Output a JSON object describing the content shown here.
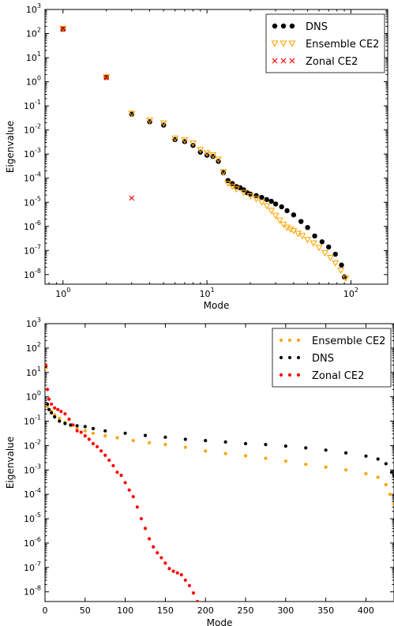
{
  "chart_data": [
    {
      "type": "scatter",
      "xlabel": "Mode",
      "ylabel": "Eigenvalue",
      "xscale": "log",
      "yscale": "log",
      "xlim": [
        0.75,
        180
      ],
      "ylim": [
        4e-09,
        1000
      ],
      "x_ticks": [
        1,
        10,
        100
      ],
      "x_tick_labels": [
        {
          "base": "10",
          "exp": "0"
        },
        {
          "base": "10",
          "exp": "1"
        },
        {
          "base": "10",
          "exp": "2"
        }
      ],
      "y_ticks": [
        1e-08,
        1e-07,
        1e-06,
        1e-05,
        0.0001,
        0.001,
        0.01,
        0.1,
        1,
        10,
        100,
        1000
      ],
      "y_tick_labels": [
        {
          "base": "10",
          "exp": "-8"
        },
        {
          "base": "10",
          "exp": "-7"
        },
        {
          "base": "10",
          "exp": "-6"
        },
        {
          "base": "10",
          "exp": "-5"
        },
        {
          "base": "10",
          "exp": "-4"
        },
        {
          "base": "10",
          "exp": "-3"
        },
        {
          "base": "10",
          "exp": "-2"
        },
        {
          "base": "10",
          "exp": "-1"
        },
        {
          "base": "10",
          "exp": "0"
        },
        {
          "base": "10",
          "exp": "1"
        },
        {
          "base": "10",
          "exp": "2"
        },
        {
          "base": "10",
          "exp": "3"
        }
      ],
      "legend_position": "top-right",
      "series": [
        {
          "name": "DNS",
          "marker": "circle",
          "color": "#000000",
          "x": [
            1,
            2,
            3,
            4,
            5,
            6,
            7,
            8,
            9,
            10,
            11,
            12,
            13,
            14,
            15,
            16,
            17,
            18,
            19,
            20,
            22,
            24,
            26,
            28,
            30,
            33,
            36,
            40,
            45,
            50,
            56,
            63,
            70,
            78,
            86,
            90
          ],
          "y": [
            150,
            1.5,
            0.045,
            0.022,
            0.016,
            0.004,
            0.0033,
            0.0023,
            0.0012,
            0.0009,
            0.0008,
            0.0005,
            0.00017,
            8e-05,
            6e-05,
            4.5e-05,
            4e-05,
            3.3e-05,
            2.5e-05,
            2.2e-05,
            1.9e-05,
            1.6e-05,
            1.3e-05,
            1.1e-05,
            8.5e-06,
            6.5e-06,
            4.5e-06,
            3e-06,
            1.6e-06,
            9e-07,
            4e-07,
            2.3e-07,
            1.4e-07,
            7e-08,
            2.5e-08,
            8e-09
          ]
        },
        {
          "name": "Ensemble CE2",
          "marker": "triangle-down-open",
          "color": "#ffa500",
          "x": [
            1,
            2,
            3,
            4,
            5,
            6,
            7,
            8,
            9,
            10,
            11,
            12,
            13,
            14,
            15,
            16,
            18,
            20,
            22,
            24,
            26,
            28,
            30,
            32,
            34,
            36,
            38,
            40,
            43,
            46,
            50,
            55,
            60,
            66,
            72,
            78,
            85,
            92
          ],
          "y": [
            160,
            1.55,
            0.048,
            0.025,
            0.019,
            0.0045,
            0.0038,
            0.0028,
            0.0015,
            0.0011,
            0.0009,
            0.0006,
            0.00018,
            6e-05,
            4.5e-05,
            3.5e-05,
            2.5e-05,
            1.8e-05,
            1.4e-05,
            1e-05,
            7e-06,
            4.5e-06,
            2.8e-06,
            1.8e-06,
            1.2e-06,
            9e-07,
            7.5e-07,
            6.5e-07,
            5e-07,
            4e-07,
            2.8e-07,
            2e-07,
            1.3e-07,
            8e-08,
            5e-08,
            3e-08,
            1.5e-08,
            7e-09
          ]
        },
        {
          "name": "Zonal CE2",
          "marker": "x",
          "color": "#ff0000",
          "x": [
            1,
            2,
            3
          ],
          "y": [
            155,
            1.5,
            1.5e-05
          ]
        }
      ]
    },
    {
      "type": "scatter",
      "xlabel": "Mode",
      "ylabel": "Eigenvalue",
      "xscale": "linear",
      "yscale": "log",
      "xlim": [
        0,
        435
      ],
      "ylim": [
        4e-09,
        1000
      ],
      "x_ticks": [
        0,
        50,
        100,
        150,
        200,
        250,
        300,
        350,
        400
      ],
      "x_tick_labels": [
        "0",
        "50",
        "100",
        "150",
        "200",
        "250",
        "300",
        "350",
        "400"
      ],
      "y_ticks": [
        1e-08,
        1e-07,
        1e-06,
        1e-05,
        0.0001,
        0.001,
        0.01,
        0.1,
        1,
        10,
        100,
        1000
      ],
      "y_tick_labels": [
        {
          "base": "10",
          "exp": "-8"
        },
        {
          "base": "10",
          "exp": "-7"
        },
        {
          "base": "10",
          "exp": "-6"
        },
        {
          "base": "10",
          "exp": "-5"
        },
        {
          "base": "10",
          "exp": "-4"
        },
        {
          "base": "10",
          "exp": "-3"
        },
        {
          "base": "10",
          "exp": "-2"
        },
        {
          "base": "10",
          "exp": "-1"
        },
        {
          "base": "10",
          "exp": "0"
        },
        {
          "base": "10",
          "exp": "1"
        },
        {
          "base": "10",
          "exp": "2"
        },
        {
          "base": "10",
          "exp": "3"
        }
      ],
      "legend_position": "top-right",
      "series": [
        {
          "name": "Ensemble CE2",
          "marker": "dot",
          "color": "#ffa500",
          "x": [
            1,
            3,
            5,
            8,
            12,
            18,
            25,
            32,
            40,
            50,
            60,
            75,
            90,
            110,
            130,
            150,
            175,
            200,
            225,
            250,
            275,
            300,
            325,
            350,
            375,
            400,
            415,
            425,
            430,
            435
          ],
          "y": [
            15,
            0.4,
            0.3,
            0.25,
            0.18,
            0.13,
            0.09,
            0.065,
            0.05,
            0.04,
            0.032,
            0.025,
            0.021,
            0.016,
            0.013,
            0.011,
            0.0085,
            0.006,
            0.0047,
            0.0038,
            0.003,
            0.0023,
            0.0017,
            0.0013,
            0.001,
            0.0007,
            0.0005,
            0.00025,
            0.0001,
            4e-05
          ]
        },
        {
          "name": "DNS",
          "marker": "dot",
          "color": "#000000",
          "x": [
            1,
            3,
            5,
            8,
            12,
            18,
            25,
            32,
            40,
            50,
            60,
            75,
            100,
            125,
            150,
            175,
            200,
            225,
            250,
            275,
            300,
            325,
            350,
            375,
            400,
            415,
            425,
            432,
            435
          ],
          "y": [
            18,
            0.5,
            0.3,
            0.22,
            0.15,
            0.1,
            0.08,
            0.07,
            0.065,
            0.06,
            0.05,
            0.04,
            0.032,
            0.026,
            0.022,
            0.018,
            0.016,
            0.014,
            0.012,
            0.011,
            0.0095,
            0.008,
            0.0065,
            0.005,
            0.0037,
            0.0028,
            0.0018,
            0.0008,
            0.0006
          ]
        },
        {
          "name": "Zonal CE2",
          "marker": "dot",
          "color": "#ff0000",
          "x": [
            1,
            3,
            5,
            8,
            12,
            16,
            20,
            25,
            30,
            35,
            40,
            45,
            50,
            55,
            60,
            65,
            70,
            75,
            80,
            85,
            90,
            95,
            100,
            105,
            110,
            115,
            120,
            125,
            130,
            135,
            140,
            145,
            150,
            155,
            160,
            165,
            170,
            175,
            180,
            185,
            190
          ],
          "y": [
            20,
            2,
            0.8,
            0.5,
            0.35,
            0.3,
            0.25,
            0.2,
            0.12,
            0.07,
            0.04,
            0.035,
            0.025,
            0.018,
            0.012,
            0.009,
            0.006,
            0.004,
            0.0025,
            0.0015,
            0.0008,
            0.0006,
            0.0003,
            0.00015,
            8e-05,
            3e-05,
            1e-05,
            4e-06,
            1.5e-06,
            7e-07,
            4e-07,
            2.5e-07,
            1.5e-07,
            9e-08,
            7e-08,
            6e-08,
            5e-08,
            3e-08,
            1.8e-08,
            9e-09,
            4e-09
          ]
        }
      ]
    }
  ]
}
